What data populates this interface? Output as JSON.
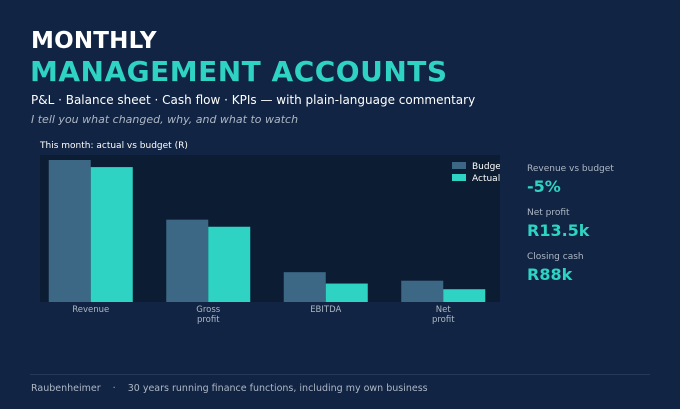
{
  "header": {
    "title_top": "MONTHLY",
    "title_main": "MANAGEMENT ACCOUNTS",
    "subtitle": "P&L  ·  Balance sheet  ·  Cash flow  ·  KPIs  —  with plain-language commentary",
    "tagline": "I tell you what changed, why, and what to watch"
  },
  "chart_data": {
    "type": "bar",
    "title": "This month: actual vs budget (R)",
    "categories": [
      "Revenue",
      "Gross profit",
      "EBITDA",
      "Net profit"
    ],
    "category_lines": [
      [
        "Revenue"
      ],
      [
        "Gross",
        "profit"
      ],
      [
        "EBITDA"
      ],
      [
        "Net",
        "profit"
      ]
    ],
    "series": [
      {
        "name": "Budget",
        "color": "#3c6886",
        "values": [
          100,
          58,
          21,
          15
        ]
      },
      {
        "name": "Actual",
        "color": "#2fd3c3",
        "values": [
          95,
          53,
          13,
          9
        ]
      }
    ],
    "ylim": [
      0,
      100
    ],
    "grid": false,
    "legend_position": "top-right",
    "plot_background": "#0c1c33"
  },
  "kpis": [
    {
      "label": "Revenue vs budget",
      "value": "-5%"
    },
    {
      "label": "Net profit",
      "value": "R13.5k"
    },
    {
      "label": "Closing cash",
      "value": "R88k"
    }
  ],
  "footer": {
    "name": "Raubenheimer",
    "separator": "·",
    "description": "30 years running finance functions, including my own business"
  },
  "colors": {
    "background": "#112443",
    "accent": "#2fd3c3",
    "muted_text": "#aeb8c6"
  }
}
